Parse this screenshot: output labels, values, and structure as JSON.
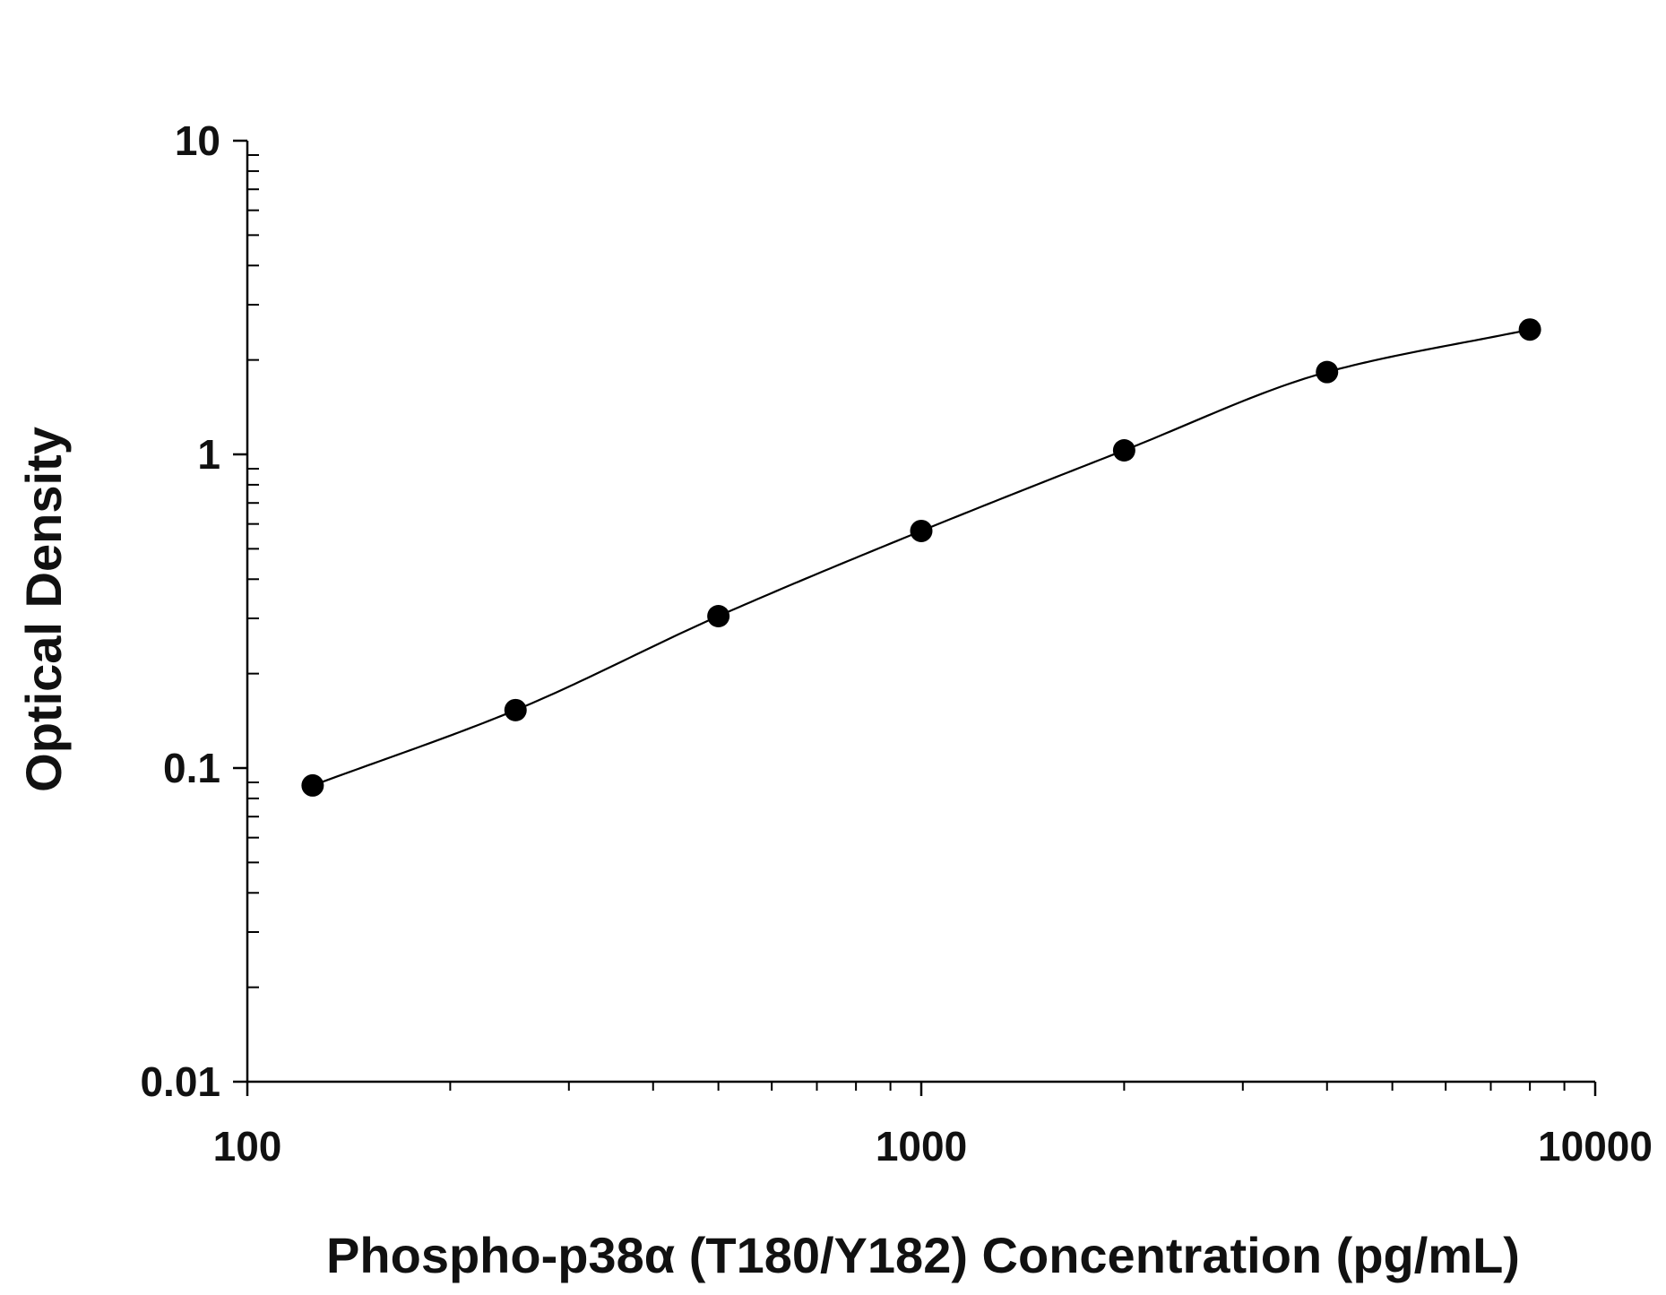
{
  "chart_data": {
    "type": "scatter",
    "title": "",
    "xlabel": "Phospho-p38α (T180/Y182) Concentration (pg/mL)",
    "ylabel": "Optical Density",
    "x_scale": "log",
    "y_scale": "log",
    "xlim": [
      100,
      10000
    ],
    "ylim": [
      0.01,
      10
    ],
    "x_ticks": [
      100,
      1000,
      10000
    ],
    "x_tick_labels": [
      "100",
      "1000",
      "10000"
    ],
    "y_ticks": [
      0.01,
      0.1,
      1,
      10
    ],
    "y_tick_labels": [
      "0.01",
      "0.1",
      "1",
      "10"
    ],
    "grid": false,
    "legend": "none",
    "series": [
      {
        "points": [
          {
            "x": 125,
            "y": 0.088
          },
          {
            "x": 250,
            "y": 0.153
          },
          {
            "x": 500,
            "y": 0.305
          },
          {
            "x": 1000,
            "y": 0.57
          },
          {
            "x": 2000,
            "y": 1.03
          },
          {
            "x": 4000,
            "y": 1.83
          },
          {
            "x": 8000,
            "y": 2.5
          }
        ],
        "fit_curve": true,
        "marker": "filled-circle",
        "color": "#000000"
      }
    ]
  }
}
